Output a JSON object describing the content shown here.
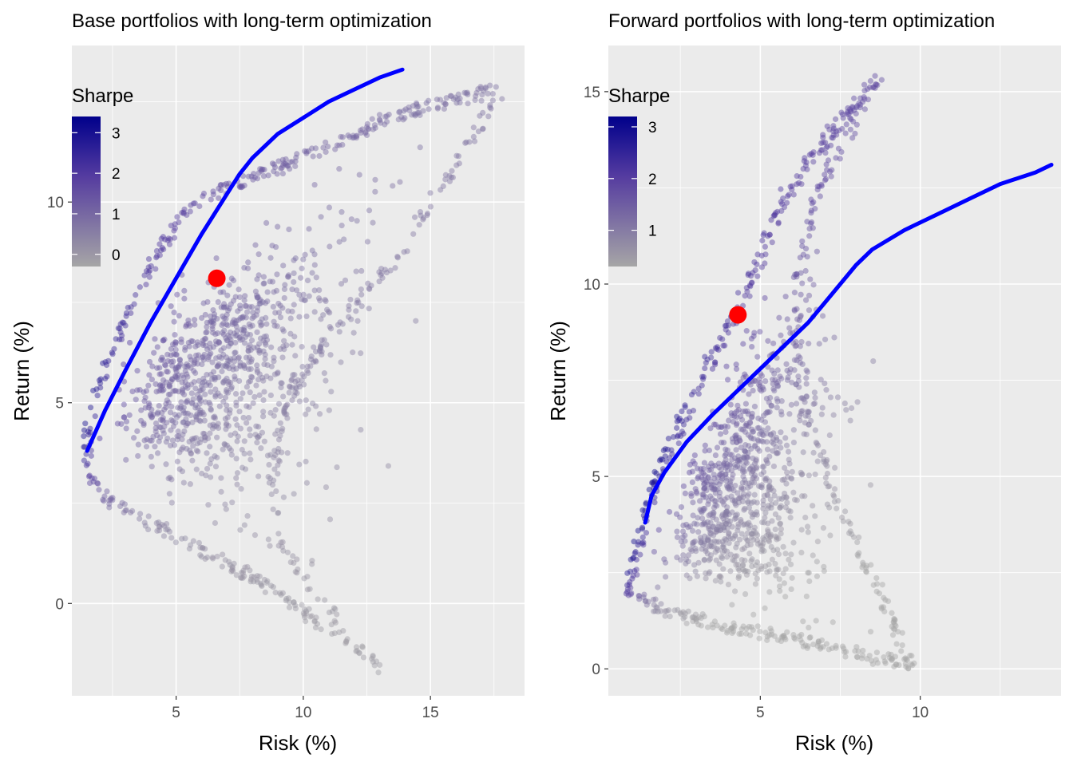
{
  "chart_data": [
    {
      "type": "scatter",
      "title": "Base portfolios with long-term optimization",
      "xlabel": "Risk (%)",
      "ylabel": "Return (%)",
      "xlim": [
        0.9,
        18.7
      ],
      "ylim": [
        -2.3,
        13.9
      ],
      "xticks": [
        5,
        10,
        15
      ],
      "yticks": [
        0,
        5,
        10
      ],
      "grid": true,
      "legend": {
        "title": "Sharpe",
        "placement": "top-left",
        "ticks": [
          0,
          1,
          2,
          3
        ],
        "range": [
          -0.3,
          3.4
        ],
        "colors": [
          "#a6a6a6",
          "#00008b"
        ]
      },
      "scatter_shape": {
        "min_risk_point": [
          1.5,
          4.1
        ],
        "top_point": [
          17.8,
          12.8
        ],
        "bottom_point": [
          13.1,
          -1.6
        ],
        "upper_arm": [
          [
            1.5,
            4.1
          ],
          [
            1.9,
            5.2
          ],
          [
            2.7,
            6.6
          ],
          [
            3.7,
            8.1
          ],
          [
            5.3,
            9.8
          ],
          [
            7.5,
            10.5
          ],
          [
            10.0,
            11.1
          ],
          [
            13.0,
            12.0
          ],
          [
            15.5,
            12.5
          ],
          [
            17.8,
            12.8
          ]
        ],
        "lower_arm": [
          [
            1.5,
            4.1
          ],
          [
            1.5,
            3.3
          ],
          [
            2.3,
            2.6
          ],
          [
            4.0,
            2.0
          ],
          [
            6.0,
            1.3
          ],
          [
            8.5,
            0.5
          ],
          [
            10.5,
            -0.4
          ],
          [
            13.1,
            -1.6
          ]
        ],
        "inner_right_arm": [
          [
            17.8,
            12.8
          ],
          [
            15.5,
            10.4
          ],
          [
            13.5,
            8.4
          ],
          [
            11.5,
            7.1
          ],
          [
            9.8,
            5.6
          ],
          [
            9.0,
            4.2
          ],
          [
            8.8,
            3.0
          ],
          [
            9.2,
            1.5
          ],
          [
            10.3,
            0.4
          ],
          [
            11.5,
            -0.4
          ]
        ],
        "n_points": 1500
      },
      "series": [
        {
          "type": "line",
          "color": "#0000ff",
          "points": [
            [
              1.5,
              3.8
            ],
            [
              2.2,
              4.8
            ],
            [
              3.0,
              5.8
            ],
            [
              4.0,
              7.0
            ],
            [
              5.0,
              8.1
            ],
            [
              6.0,
              9.2
            ],
            [
              7.0,
              10.2
            ],
            [
              7.5,
              10.7
            ],
            [
              8.0,
              11.1
            ],
            [
              9.0,
              11.7
            ],
            [
              10.0,
              12.1
            ],
            [
              11.0,
              12.5
            ],
            [
              12.0,
              12.8
            ],
            [
              13.0,
              13.1
            ],
            [
              13.9,
              13.3
            ]
          ]
        },
        {
          "type": "point",
          "color": "#ff0000",
          "points": [
            [
              6.6,
              8.1
            ]
          ]
        }
      ]
    },
    {
      "type": "scatter",
      "title": "Forward portfolios with long-term optimization",
      "xlabel": "Risk (%)",
      "ylabel": "Return (%)",
      "xlim": [
        0.25,
        14.4
      ],
      "ylim": [
        -0.7,
        16.2
      ],
      "xticks": [
        5,
        10
      ],
      "yticks": [
        0,
        5,
        10,
        15
      ],
      "grid": true,
      "legend": {
        "title": "Sharpe",
        "placement": "top-left",
        "ticks": [
          1,
          2,
          3
        ],
        "range": [
          0.3,
          3.2
        ],
        "colors": [
          "#a6a6a6",
          "#00008b"
        ]
      },
      "scatter_shape": {
        "min_risk_point": [
          0.9,
          2.0
        ],
        "top_point": [
          8.8,
          15.4
        ],
        "bottom_point": [
          9.8,
          0.1
        ],
        "upper_arm": [
          [
            0.9,
            2.0
          ],
          [
            1.3,
            3.8
          ],
          [
            2.2,
            5.8
          ],
          [
            3.4,
            7.9
          ],
          [
            4.7,
            10.1
          ],
          [
            5.8,
            12.3
          ],
          [
            7.3,
            14.0
          ],
          [
            8.8,
            15.4
          ]
        ],
        "lower_arm": [
          [
            0.9,
            2.0
          ],
          [
            2.0,
            1.5
          ],
          [
            4.0,
            1.1
          ],
          [
            6.0,
            0.8
          ],
          [
            8.0,
            0.4
          ],
          [
            9.8,
            0.1
          ]
        ],
        "inner_right_arm": [
          [
            8.8,
            15.4
          ],
          [
            7.6,
            13.8
          ],
          [
            6.8,
            12.4
          ],
          [
            6.2,
            10.2
          ],
          [
            6.1,
            8.5
          ],
          [
            6.4,
            6.7
          ],
          [
            7.0,
            5.2
          ],
          [
            7.6,
            4.0
          ],
          [
            8.6,
            2.2
          ],
          [
            9.8,
            0.1
          ]
        ],
        "n_points": 1500
      },
      "series": [
        {
          "type": "line",
          "color": "#0000ff",
          "points": [
            [
              1.4,
              3.8
            ],
            [
              1.6,
              4.5
            ],
            [
              2.0,
              5.1
            ],
            [
              2.7,
              5.9
            ],
            [
              3.5,
              6.6
            ],
            [
              4.5,
              7.4
            ],
            [
              5.5,
              8.2
            ],
            [
              6.5,
              9.0
            ],
            [
              7.0,
              9.5
            ],
            [
              7.5,
              10.0
            ],
            [
              8.0,
              10.5
            ],
            [
              8.5,
              10.9
            ],
            [
              9.5,
              11.4
            ],
            [
              10.5,
              11.8
            ],
            [
              11.5,
              12.2
            ],
            [
              12.5,
              12.6
            ],
            [
              13.6,
              12.9
            ],
            [
              14.1,
              13.1
            ]
          ]
        },
        {
          "type": "point",
          "color": "#ff0000",
          "points": [
            [
              4.3,
              9.2
            ]
          ]
        }
      ]
    }
  ]
}
